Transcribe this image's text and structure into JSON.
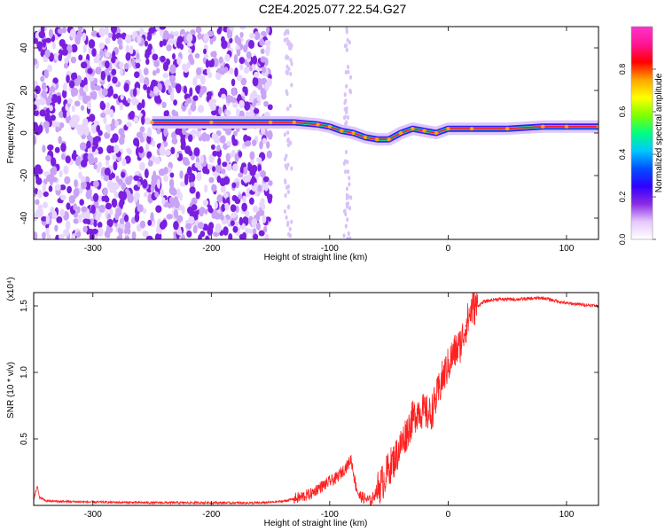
{
  "figure": {
    "title": "C2E4.2025.077.22.54.G27"
  },
  "chart_data": [
    {
      "type": "heatmap",
      "xlabel": "Height of straight line (km)",
      "ylabel": "Frequency (Hz)",
      "xlim": [
        -350,
        127
      ],
      "ylim": [
        -50,
        50
      ],
      "xticks": [
        -300,
        -200,
        -100,
        0,
        100
      ],
      "yticks": [
        -40,
        -20,
        0,
        20,
        40
      ],
      "colorbar": {
        "label": "Normalized spectral amplitude",
        "range": [
          0,
          1
        ],
        "ticks": [
          "0.0",
          "0.2",
          "0.4",
          "0.6",
          "0.8"
        ],
        "colormap": [
          "#ffffff",
          "#e6c8ff",
          "#8a2be2",
          "#3000ff",
          "#0050ff",
          "#00c8ff",
          "#00ff80",
          "#80ff00",
          "#ffff00",
          "#ffa500",
          "#ff0000",
          "#ff1493",
          "#ff33cc"
        ]
      },
      "ridge": {
        "x": [
          -250,
          -200,
          -150,
          -130,
          -110,
          -100,
          -90,
          -80,
          -70,
          -60,
          -50,
          -40,
          -30,
          -20,
          -10,
          0,
          20,
          50,
          80,
          100,
          127
        ],
        "y": [
          5,
          5,
          5,
          5,
          4,
          3,
          1,
          0,
          -2,
          -3,
          -3,
          0,
          2,
          1,
          0,
          2,
          2,
          2,
          3,
          3,
          3
        ]
      },
      "noise_region_x": [
        -350,
        -150
      ]
    },
    {
      "type": "line",
      "xlabel": "Height of straight line (km)",
      "ylabel": "SNR (10 * v/v)",
      "y_multiplier": "(x10⁴)",
      "xlim": [
        -350,
        127
      ],
      "ylim": [
        0,
        16000
      ],
      "xticks": [
        -300,
        -200,
        -100,
        0,
        100
      ],
      "yticks": [
        "0.5",
        "1.0",
        "1.5"
      ],
      "series": [
        {
          "color": "#ff2020",
          "x": [
            -350,
            -347,
            -345,
            -340,
            -330,
            -300,
            -250,
            -200,
            -160,
            -140,
            -125,
            -115,
            -110,
            -105,
            -100,
            -95,
            -90,
            -85,
            -82,
            -78,
            -75,
            -70,
            -65,
            -60,
            -55,
            -50,
            -45,
            -40,
            -35,
            -30,
            -25,
            -20,
            -15,
            -10,
            -5,
            0,
            5,
            10,
            15,
            20,
            25,
            30,
            40,
            60,
            80,
            100,
            127
          ],
          "y": [
            500,
            1400,
            600,
            350,
            300,
            250,
            200,
            200,
            180,
            300,
            600,
            900,
            1300,
            1500,
            1800,
            2000,
            2500,
            3000,
            3500,
            1500,
            700,
            500,
            300,
            1200,
            1800,
            2800,
            3500,
            4500,
            5500,
            6500,
            7200,
            7000,
            6800,
            8000,
            9500,
            10500,
            11500,
            12000,
            13500,
            14800,
            15000,
            15300,
            15500,
            15500,
            15600,
            15200,
            15000
          ]
        }
      ]
    }
  ]
}
